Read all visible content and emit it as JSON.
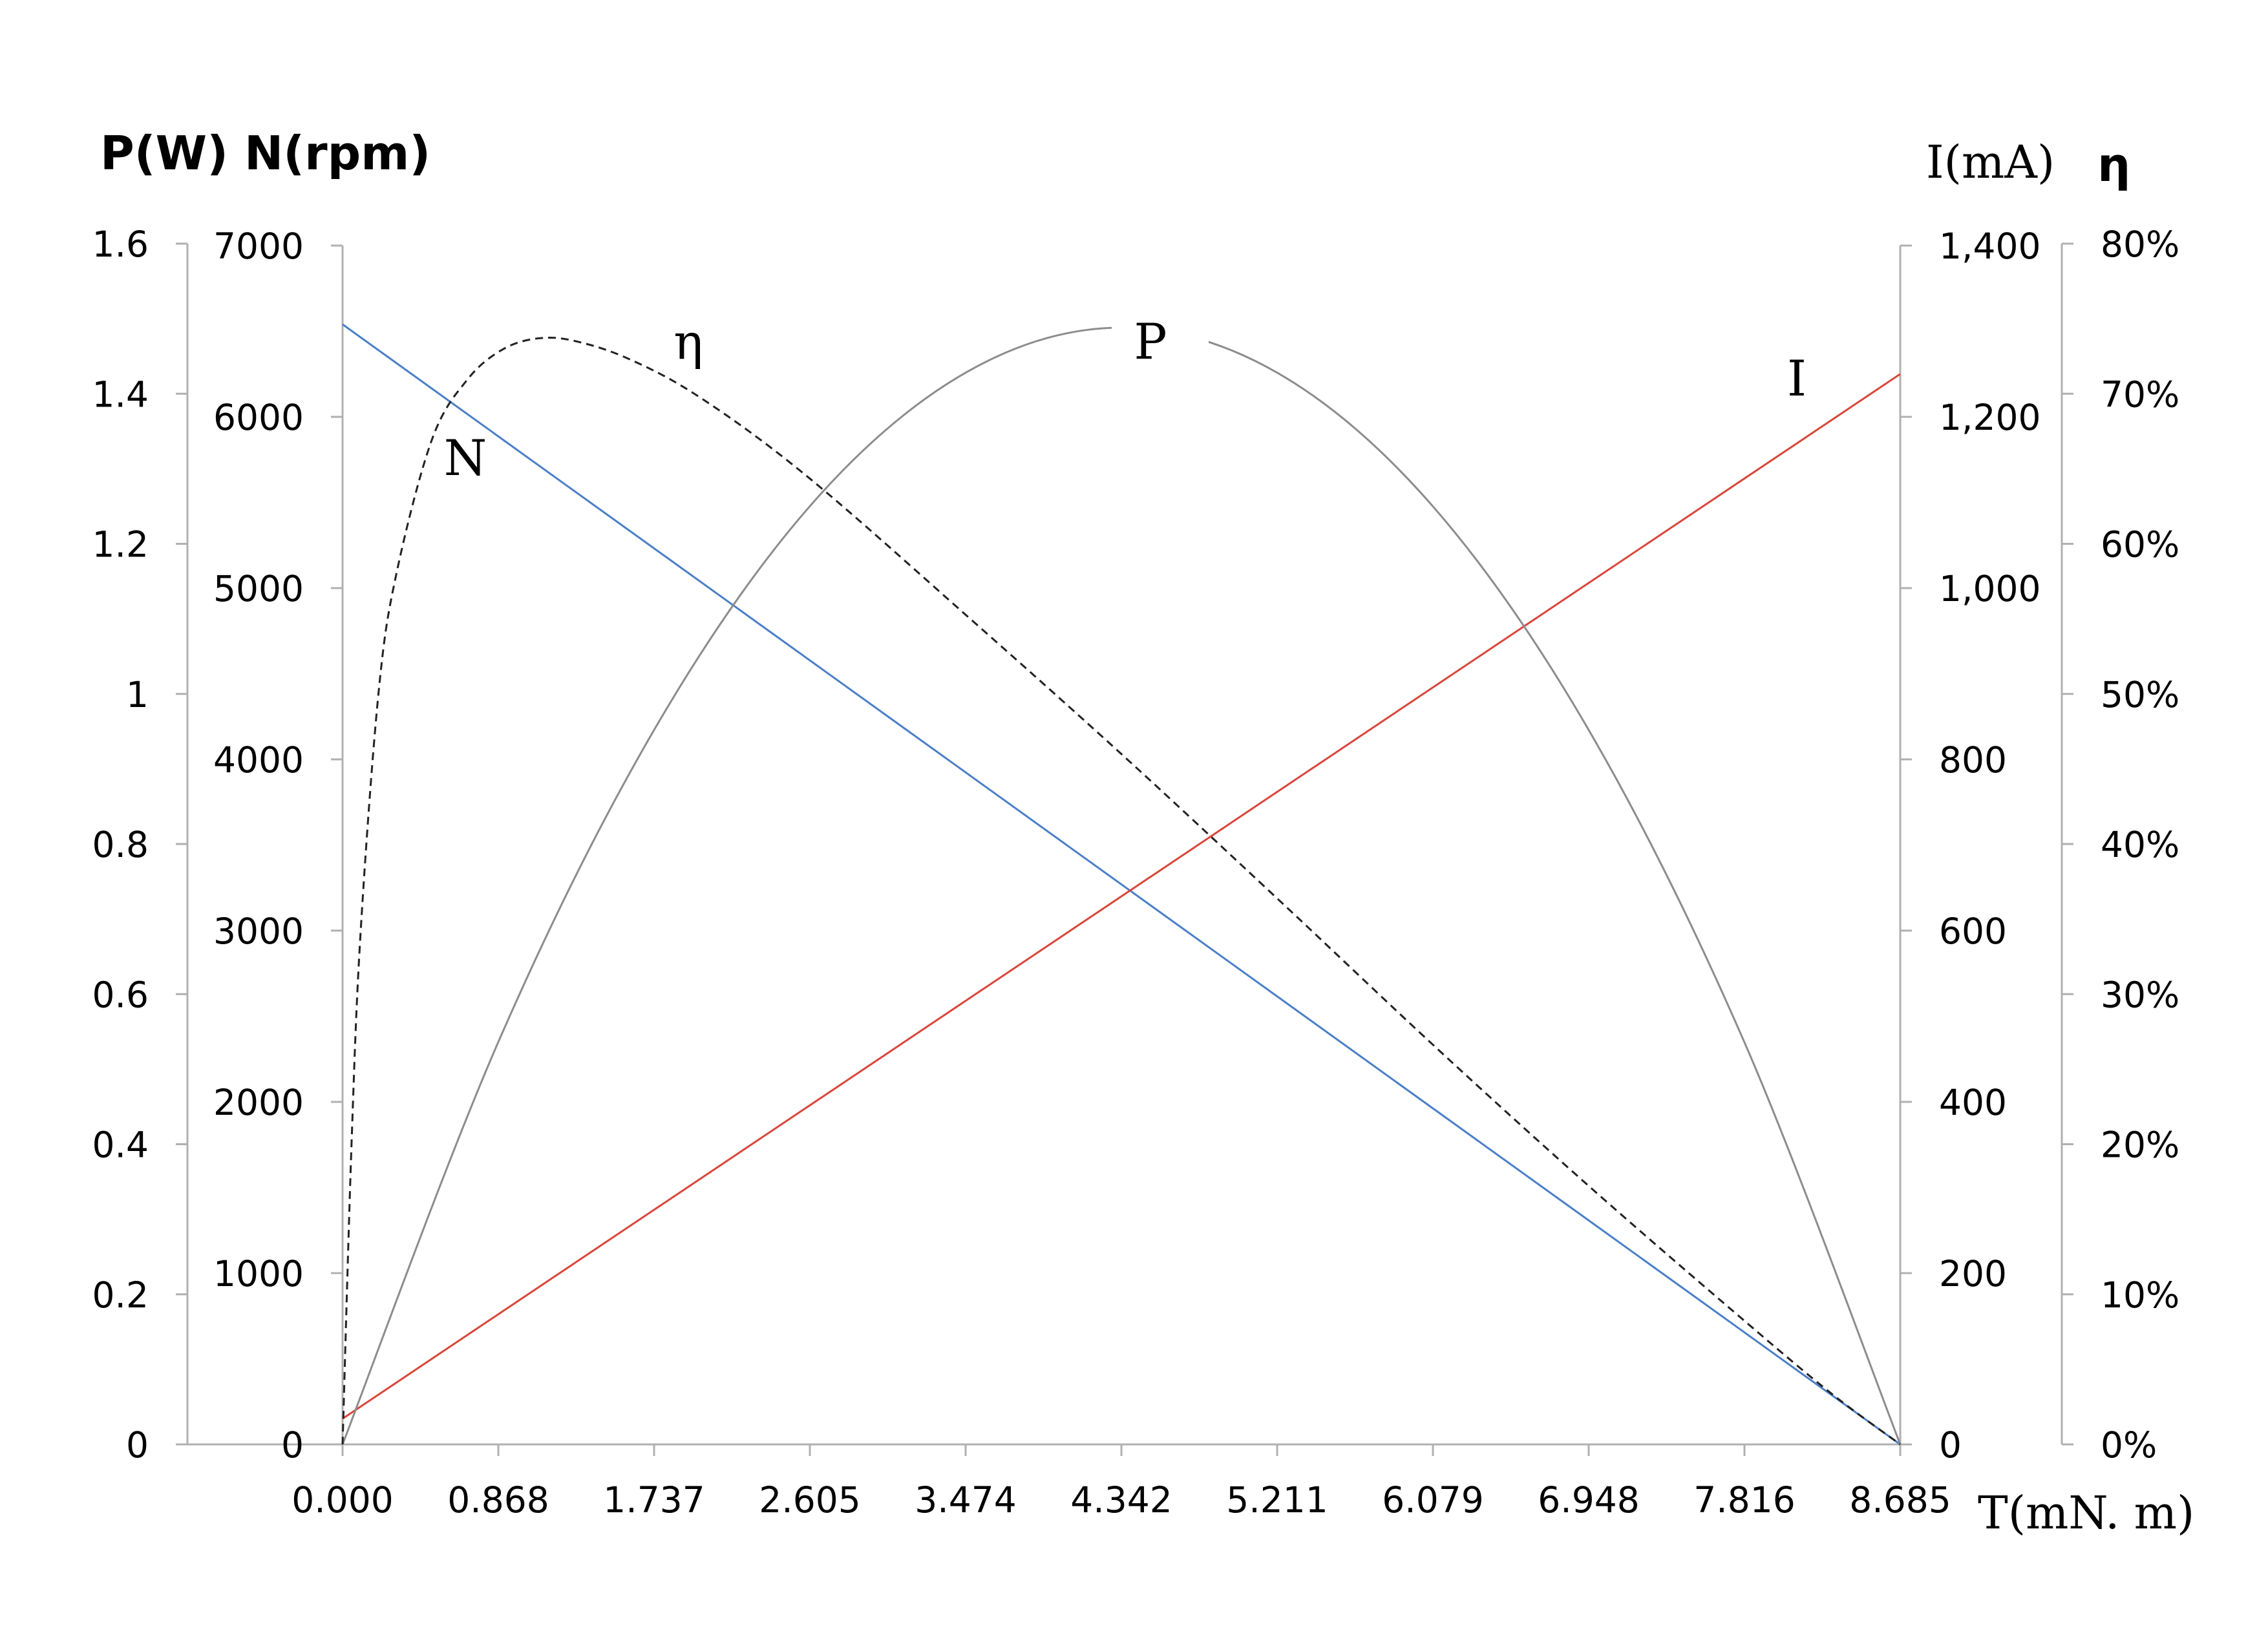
{
  "chart_data": {
    "type": "line",
    "x_axis": {
      "title": "T(mN. m)",
      "ticks": [
        "0.000",
        "0.868",
        "1.737",
        "2.605",
        "3.474",
        "4.342",
        "5.211",
        "6.079",
        "6.948",
        "7.816",
        "8.685"
      ],
      "range": [
        0,
        8.685
      ]
    },
    "y_axes": {
      "power": {
        "title": "P(W)",
        "ticks": [
          "0",
          "0.2",
          "0.4",
          "0.6",
          "0.8",
          "1",
          "1.2",
          "1.4",
          "1.6"
        ],
        "range": [
          0,
          1.6
        ]
      },
      "speed": {
        "title": "N(rpm)",
        "ticks": [
          "0",
          "1000",
          "2000",
          "3000",
          "4000",
          "5000",
          "6000",
          "7000"
        ],
        "range": [
          0,
          7000
        ]
      },
      "current": {
        "title": "I(mA)",
        "ticks": [
          "0",
          "200",
          "400",
          "600",
          "800",
          "1,000",
          "1,200",
          "1,400"
        ],
        "range": [
          0,
          1400
        ]
      },
      "efficiency": {
        "title": "η",
        "ticks": [
          "0%",
          "10%",
          "20%",
          "30%",
          "40%",
          "50%",
          "60%",
          "70%",
          "80%"
        ],
        "range": [
          0,
          80
        ]
      }
    },
    "series": [
      {
        "name": "N",
        "axis": "speed",
        "color": "#4a7fc8",
        "dash": "solid",
        "x": [
          0,
          8.685
        ],
        "y": [
          6540,
          0
        ]
      },
      {
        "name": "I",
        "axis": "current",
        "color": "#d9463a",
        "dash": "solid",
        "x": [
          0,
          8.685
        ],
        "y": [
          30,
          1250
        ]
      },
      {
        "name": "P",
        "axis": "power",
        "color": "#8c8c8c",
        "dash": "solid",
        "x": [
          0,
          0.868,
          1.737,
          2.605,
          3.474,
          4.342,
          5.211,
          6.079,
          6.948,
          7.816,
          8.685
        ],
        "y": [
          0,
          0.536,
          0.952,
          1.25,
          1.428,
          1.488,
          1.428,
          1.25,
          0.952,
          0.536,
          0
        ]
      },
      {
        "name": "η",
        "axis": "efficiency",
        "color": "#222222",
        "dash": "dashed",
        "x": [
          0,
          0.05,
          0.1,
          0.2,
          0.3,
          0.5,
          0.7,
          0.9,
          1.1,
          1.3,
          1.6,
          2.0,
          2.6,
          3.5,
          4.342,
          5.2,
          6.1,
          6.95,
          7.8,
          8.3,
          8.685
        ],
        "y": [
          0,
          20,
          34,
          50,
          58,
          67,
          71,
          73,
          73.7,
          73.5,
          72.3,
          69.7,
          64.4,
          55,
          46,
          36.5,
          26.4,
          17.2,
          8.4,
          3.4,
          0
        ]
      }
    ]
  }
}
